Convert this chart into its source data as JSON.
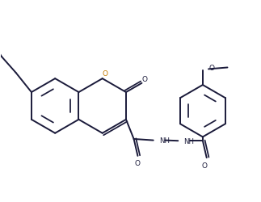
{
  "figsize": [
    3.23,
    2.51
  ],
  "dpi": 100,
  "bg": "#ffffff",
  "lc": "#1a1a3a",
  "lw": 1.5,
  "flw": 1.0,
  "atoms": {
    "O_coumarin": "O",
    "O_carbonyl1": "O",
    "O_carbonyl2": "O",
    "O_methoxy": "O",
    "NH1": "NH",
    "NH2": "NH"
  }
}
